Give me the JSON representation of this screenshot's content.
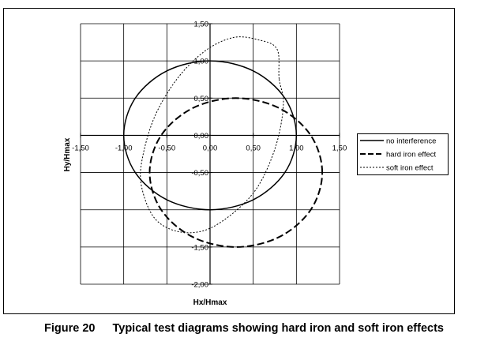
{
  "figure": {
    "number": "Figure 20",
    "caption": "Typical test diagrams showing hard iron and soft iron effects"
  },
  "chart_data": {
    "type": "scatter",
    "title": "",
    "xlabel": "Hx/Hmax",
    "ylabel": "Hy/Hmax",
    "xlim": [
      -1.5,
      1.5
    ],
    "ylim": [
      -2.0,
      1.5
    ],
    "x_ticks": [
      -1.5,
      -1.0,
      -0.5,
      0.0,
      0.5,
      1.0,
      1.5
    ],
    "y_ticks": [
      -2.0,
      -1.5,
      -0.5,
      0.0,
      0.5,
      1.0,
      1.5
    ],
    "x_tick_labels": [
      "-1,50",
      "-1,00",
      "-0,50",
      "0,00",
      "0,50",
      "1,00",
      "1,50"
    ],
    "y_tick_labels": [
      "-2,00",
      "-1,50",
      "-0,50",
      "0,00",
      "0,50",
      "1,00",
      "1,50"
    ],
    "grid": true,
    "legend_position": "right",
    "series": [
      {
        "name": "no interference",
        "style": "solid",
        "color": "#000000",
        "x": [
          1.0,
          0.866,
          0.5,
          0.0,
          -0.5,
          -0.866,
          -1.0,
          -0.866,
          -0.5,
          0.0,
          0.5,
          0.866,
          1.0
        ],
        "y": [
          0.0,
          0.5,
          0.866,
          1.0,
          0.866,
          0.5,
          0.0,
          -0.5,
          -0.866,
          -1.0,
          -0.866,
          -0.5,
          0.0
        ]
      },
      {
        "name": "hard iron effect",
        "style": "dashed",
        "color": "#000000",
        "x": [
          1.3,
          1.166,
          0.8,
          0.3,
          -0.2,
          -0.566,
          -0.7,
          -0.566,
          -0.2,
          0.3,
          0.8,
          1.166,
          1.3
        ],
        "y": [
          -0.5,
          0.0,
          0.366,
          0.5,
          0.366,
          0.0,
          -0.5,
          -1.0,
          -1.366,
          -1.5,
          -1.366,
          -1.0,
          -0.5
        ]
      },
      {
        "name": "soft iron effect",
        "style": "dotted",
        "color": "#000000",
        "x": [
          0.8,
          0.776,
          0.555,
          0.265,
          -0.062,
          -0.383,
          -0.645,
          -0.788,
          -0.79,
          -0.645,
          -0.383,
          -0.062,
          0.265,
          0.555,
          0.765,
          0.85,
          0.8
        ],
        "y": [
          0.76,
          1.159,
          1.285,
          1.313,
          1.13,
          0.756,
          0.242,
          -0.335,
          -0.705,
          -1.11,
          -1.289,
          -1.277,
          -1.046,
          -0.686,
          -0.132,
          0.418,
          0.76
        ]
      }
    ]
  }
}
